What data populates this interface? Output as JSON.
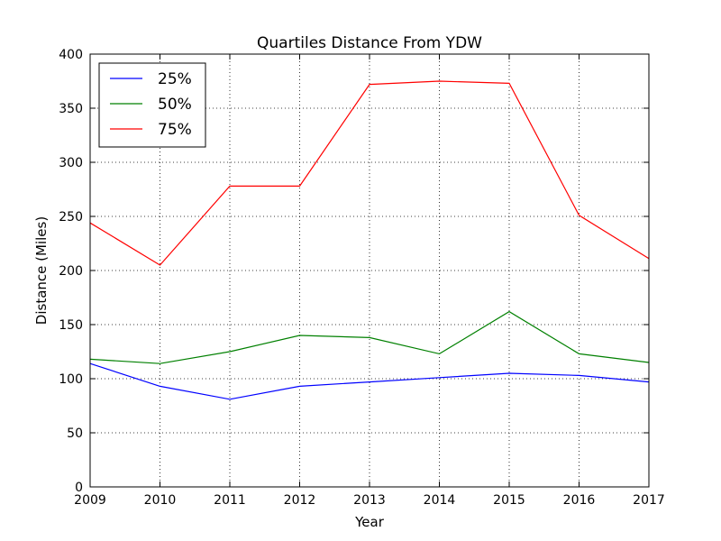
{
  "chart_data": {
    "type": "line",
    "title": "Quartiles Distance From YDW",
    "xlabel": "Year",
    "ylabel": "Distance (Miles)",
    "x": [
      2009,
      2010,
      2011,
      2012,
      2013,
      2014,
      2015,
      2016,
      2017
    ],
    "xlim": [
      2009,
      2017
    ],
    "ylim": [
      0,
      400
    ],
    "xticks": [
      "2009",
      "2010",
      "2011",
      "2012",
      "2013",
      "2014",
      "2015",
      "2016",
      "2017"
    ],
    "yticks": [
      "0",
      "50",
      "100",
      "150",
      "200",
      "250",
      "300",
      "350",
      "400"
    ],
    "grid": true,
    "legend_position": "top-left",
    "series": [
      {
        "name": "25%",
        "color": "#0000ff",
        "values": [
          114,
          93,
          81,
          93,
          97,
          101,
          105,
          103,
          97
        ]
      },
      {
        "name": "50%",
        "color": "#008000",
        "values": [
          118,
          114,
          125,
          140,
          138,
          123,
          162,
          123,
          115
        ]
      },
      {
        "name": "75%",
        "color": "#ff0000",
        "values": [
          244,
          205,
          278,
          278,
          372,
          375,
          373,
          251,
          211
        ]
      }
    ]
  }
}
